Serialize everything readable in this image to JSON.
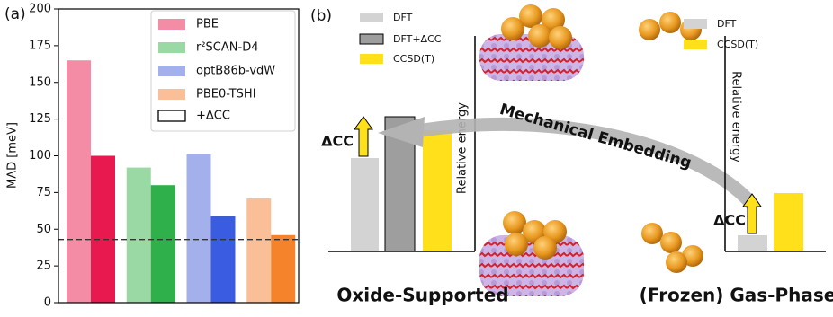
{
  "chart_data": {
    "type": "bar",
    "panel_label": "(a)",
    "ylabel": "MAD [meV]",
    "series": [
      {
        "name": "PBE",
        "colors": [
          "#f48ca6",
          "#e8194f"
        ],
        "values": [
          165,
          100
        ]
      },
      {
        "name": "r²SCAN-D4",
        "colors": [
          "#9ad8a4",
          "#2fb04a"
        ],
        "values": [
          92,
          80
        ]
      },
      {
        "name": "optB86b-vdW",
        "colors": [
          "#a3b0ec",
          "#3a5ce0"
        ],
        "values": [
          101,
          59
        ]
      },
      {
        "name": "PBE0-TSHI",
        "colors": [
          "#fbbf98",
          "#f4832c"
        ],
        "values": [
          71,
          46
        ]
      }
    ],
    "correction_legend": "+ΔCC",
    "reference_line": 43,
    "ylim": [
      0,
      200
    ],
    "yticks": [
      0,
      25,
      50,
      75,
      100,
      125,
      150,
      175,
      200
    ]
  },
  "diagram": {
    "panel_label": "(b)",
    "left": {
      "legend": [
        "DFT",
        "DFT+ΔCC",
        "CCSD(T)"
      ],
      "axis_label": "Relative energy",
      "delta_label": "ΔCC",
      "caption": "Oxide-Supported"
    },
    "right": {
      "legend": [
        "DFT",
        "CCSD(T)"
      ],
      "axis_label": "Relative energy",
      "delta_label": "ΔCC",
      "caption": "(Frozen) Gas-Phase"
    },
    "arrow_label": "Mechanical Embedding"
  }
}
